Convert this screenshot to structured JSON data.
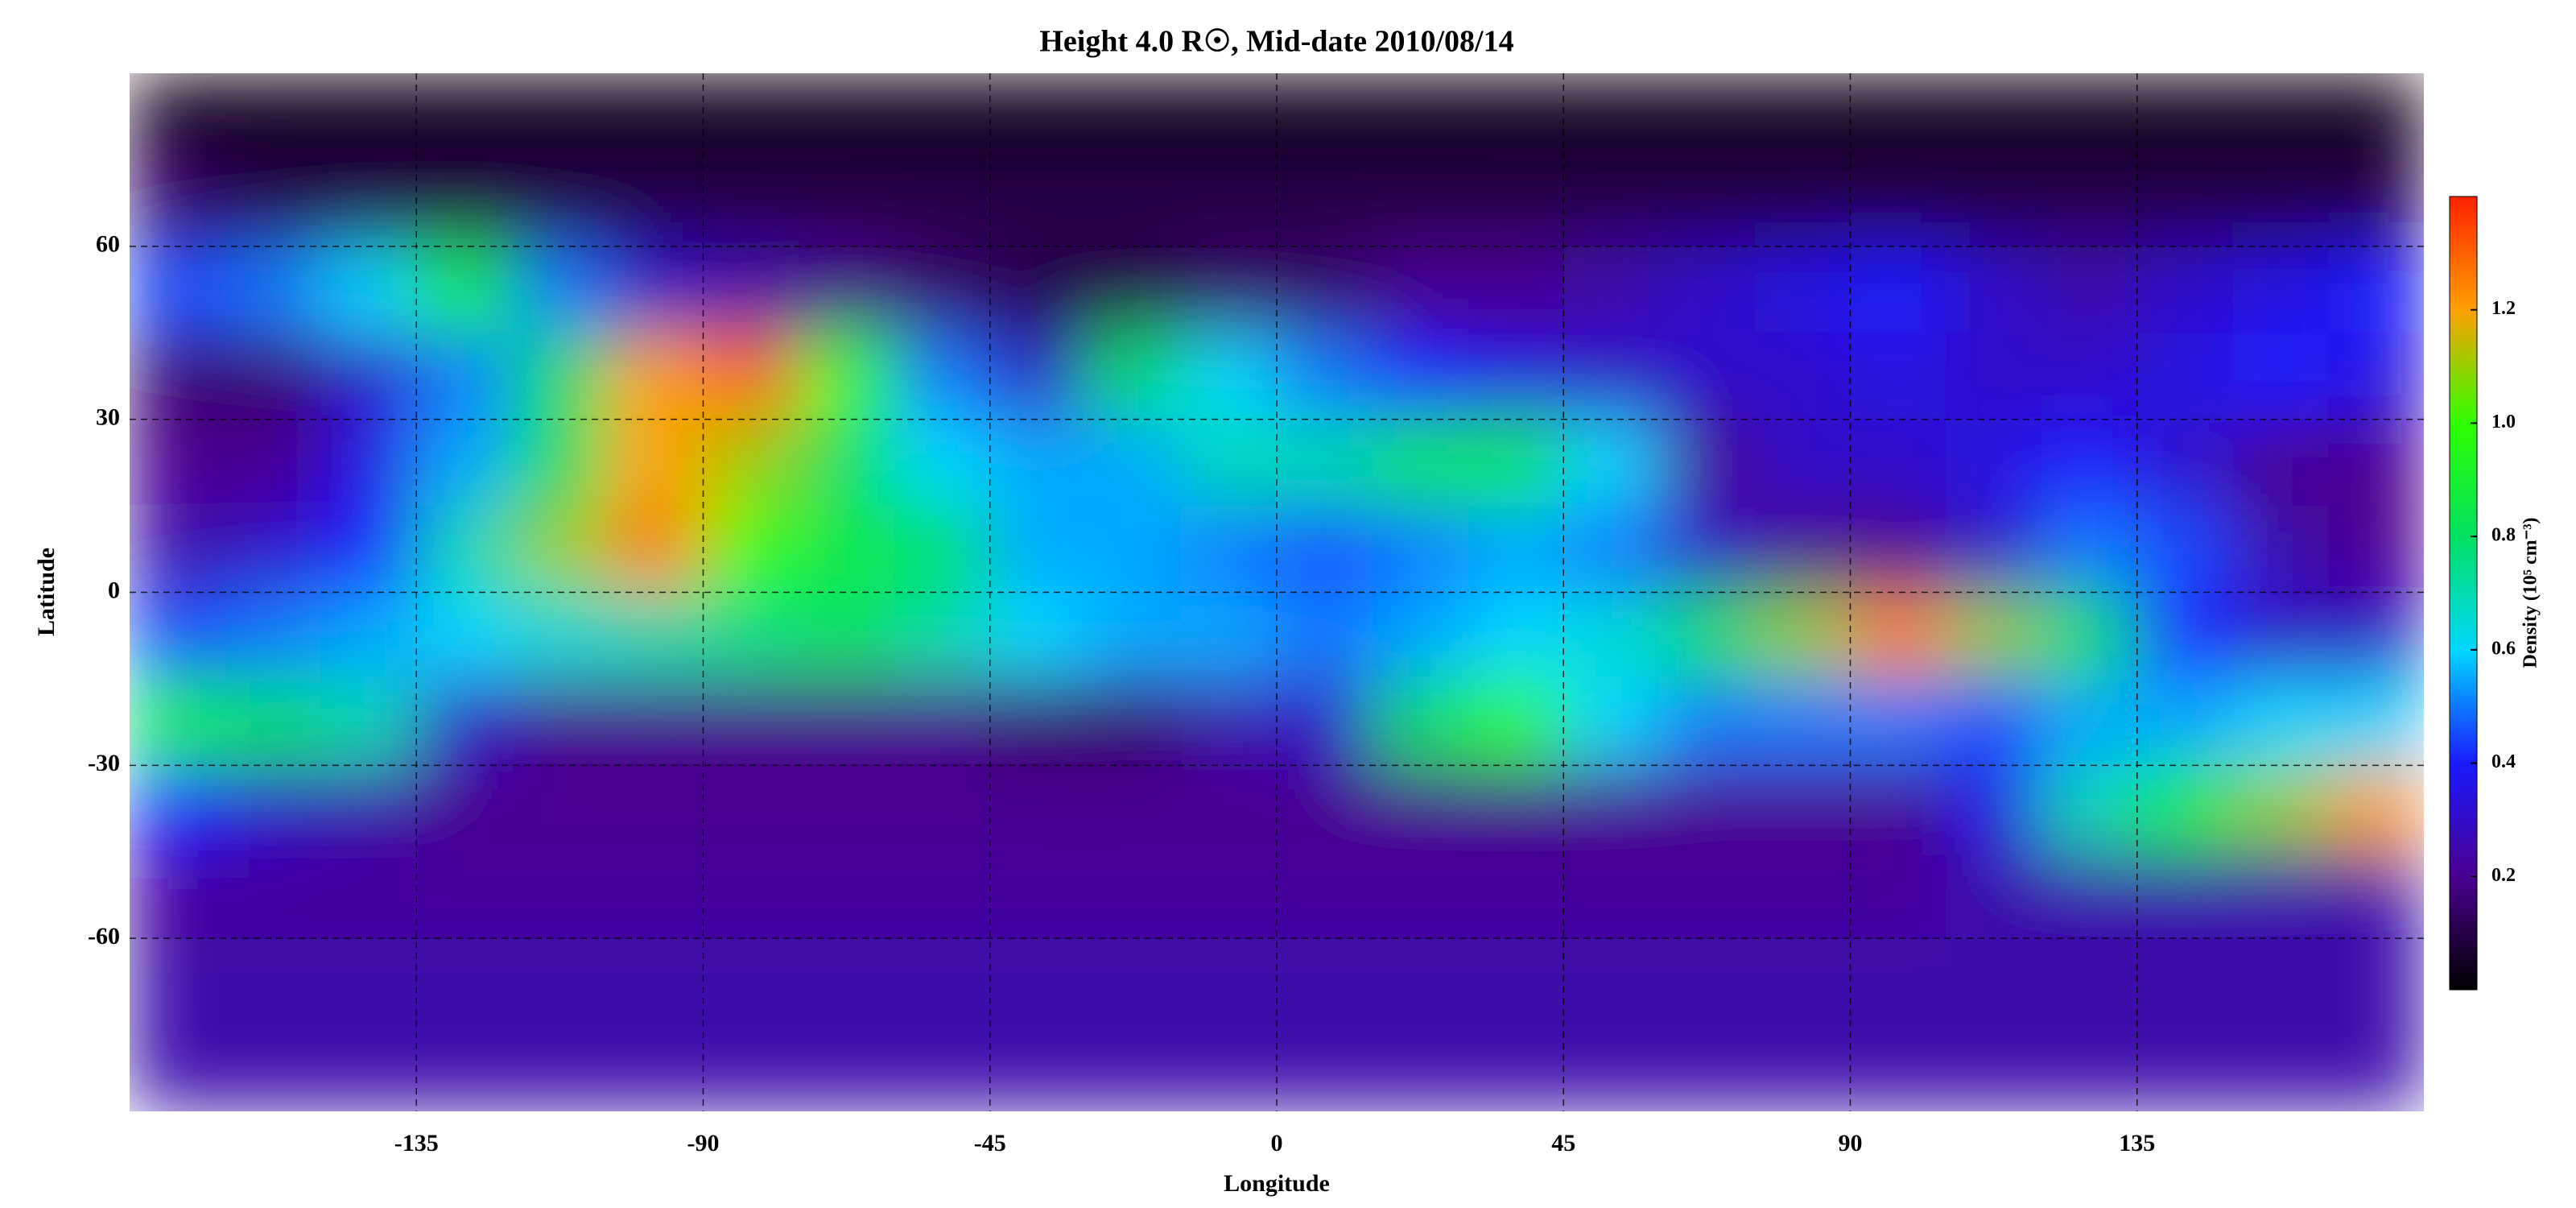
{
  "chart_data": {
    "type": "heatmap",
    "title": "Height 4.0 R☉, Mid-date 2010/08/14",
    "xlabel": "Longitude",
    "ylabel": "Latitude",
    "colorbar_label": "Density (10⁵ cm⁻³)",
    "xlim": [
      -180,
      180
    ],
    "ylim": [
      -90,
      90
    ],
    "xticks": [
      -135,
      -90,
      -45,
      0,
      45,
      90,
      135
    ],
    "yticks": [
      -60,
      -30,
      0,
      30,
      60
    ],
    "zlim": [
      0,
      1.4
    ],
    "zticks": [
      0.2,
      0.4,
      0.6,
      0.8,
      {
        "value": 1,
        "label": "1.0"
      },
      1.2
    ],
    "colorscale": [
      "#000000",
      "#4a0090",
      "#1a1aff",
      "#00d8ff",
      "#00e060",
      "#30ff00",
      "#ffa000",
      "#ff2000"
    ],
    "grid": true,
    "x": [
      -172.5,
      -157.5,
      -142.5,
      -127.5,
      -112.5,
      -97.5,
      -82.5,
      -67.5,
      -52.5,
      -37.5,
      -22.5,
      -7.5,
      7.5,
      22.5,
      37.5,
      52.5,
      67.5,
      82.5,
      97.5,
      112.5,
      127.5,
      142.5,
      157.5,
      172.5
    ],
    "y": [
      82.5,
      67.5,
      52.5,
      37.5,
      22.5,
      7.5,
      -7.5,
      -22.5,
      -37.5,
      -52.5,
      -67.5,
      -82.5
    ],
    "values": [
      [
        0.03,
        0.03,
        0.03,
        0.03,
        0.03,
        0.03,
        0.03,
        0.03,
        0.03,
        0.03,
        0.03,
        0.03,
        0.03,
        0.03,
        0.03,
        0.03,
        0.03,
        0.03,
        0.03,
        0.03,
        0.03,
        0.03,
        0.03,
        0.03
      ],
      [
        0.15,
        0.1,
        0.1,
        0.1,
        0.1,
        0.1,
        0.1,
        0.1,
        0.1,
        0.1,
        0.1,
        0.1,
        0.1,
        0.1,
        0.1,
        0.1,
        0.1,
        0.1,
        0.1,
        0.1,
        0.1,
        0.1,
        0.1,
        0.1
      ],
      [
        0.45,
        0.5,
        0.6,
        0.9,
        0.5,
        0.3,
        0.25,
        0.2,
        0.15,
        0.1,
        0.1,
        0.15,
        0.15,
        0.2,
        0.2,
        0.25,
        0.3,
        0.35,
        0.4,
        0.3,
        0.25,
        0.3,
        0.35,
        0.4
      ],
      [
        0.15,
        0.15,
        0.3,
        0.5,
        0.8,
        1.2,
        1.3,
        1.0,
        0.5,
        0.3,
        0.8,
        0.6,
        0.5,
        0.4,
        0.35,
        0.3,
        0.3,
        0.3,
        0.35,
        0.3,
        0.3,
        0.35,
        0.4,
        0.35
      ],
      [
        0.2,
        0.2,
        0.35,
        0.55,
        0.8,
        1.2,
        1.1,
        0.8,
        0.6,
        0.55,
        0.55,
        0.7,
        0.7,
        0.85,
        0.85,
        0.6,
        0.2,
        0.3,
        0.3,
        0.35,
        0.4,
        0.3,
        0.2,
        0.2
      ],
      [
        0.25,
        0.3,
        0.4,
        0.7,
        1.1,
        1.25,
        1.0,
        0.85,
        0.8,
        0.55,
        0.55,
        0.5,
        0.45,
        0.5,
        0.55,
        0.5,
        0.3,
        0.2,
        0.2,
        0.3,
        0.5,
        0.45,
        0.25,
        0.2
      ],
      [
        0.45,
        0.5,
        0.55,
        0.6,
        0.65,
        0.7,
        0.75,
        0.8,
        0.7,
        0.6,
        0.55,
        0.55,
        0.5,
        0.55,
        0.6,
        0.65,
        0.8,
        1.1,
        1.25,
        1.1,
        0.8,
        0.4,
        0.3,
        0.3
      ],
      [
        0.9,
        0.8,
        0.7,
        0.3,
        0.2,
        0.2,
        0.2,
        0.2,
        0.2,
        0.15,
        0.15,
        0.25,
        0.3,
        0.8,
        1.0,
        0.6,
        0.5,
        0.5,
        0.5,
        0.45,
        0.55,
        0.55,
        0.6,
        0.6
      ],
      [
        0.4,
        0.3,
        0.25,
        0.2,
        0.2,
        0.2,
        0.2,
        0.2,
        0.2,
        0.2,
        0.2,
        0.2,
        0.2,
        0.2,
        0.2,
        0.2,
        0.2,
        0.2,
        0.2,
        0.35,
        0.7,
        0.9,
        1.1,
        1.2
      ],
      [
        0.22,
        0.22,
        0.22,
        0.22,
        0.22,
        0.22,
        0.22,
        0.22,
        0.22,
        0.22,
        0.22,
        0.22,
        0.22,
        0.22,
        0.22,
        0.22,
        0.22,
        0.22,
        0.22,
        0.25,
        0.25,
        0.25,
        0.25,
        0.25
      ],
      [
        0.25,
        0.25,
        0.25,
        0.25,
        0.25,
        0.25,
        0.25,
        0.25,
        0.25,
        0.25,
        0.25,
        0.25,
        0.25,
        0.25,
        0.25,
        0.25,
        0.25,
        0.25,
        0.25,
        0.25,
        0.25,
        0.25,
        0.25,
        0.25
      ],
      [
        0.25,
        0.25,
        0.25,
        0.25,
        0.25,
        0.25,
        0.25,
        0.25,
        0.25,
        0.25,
        0.25,
        0.25,
        0.25,
        0.25,
        0.25,
        0.25,
        0.25,
        0.25,
        0.25,
        0.25,
        0.25,
        0.25,
        0.25,
        0.25
      ]
    ]
  }
}
